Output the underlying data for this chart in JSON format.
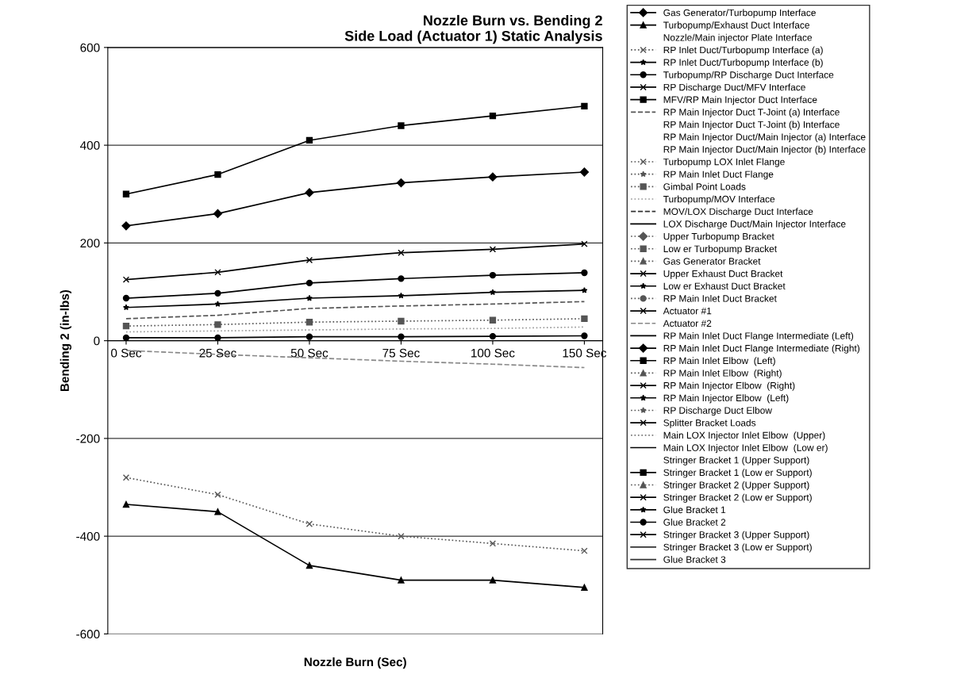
{
  "chart_data": {
    "type": "line",
    "title": "Nozzle Burn vs. Bending 2\nSide Load (Actuator 1) Static Analysis",
    "xlabel": "Nozzle Burn (Sec)",
    "ylabel": "Bending 2 (in-lbs)",
    "categories": [
      "0 Sec",
      "25 Sec",
      "50 Sec",
      "75 Sec",
      "100 Sec",
      "150 Sec"
    ],
    "ylim": [
      -600,
      600
    ],
    "yticks": [
      -600,
      -400,
      -200,
      0,
      200,
      400,
      600
    ],
    "grid": "y",
    "legend": "right",
    "series": [
      {
        "name": "Gas Generator/Turbopump Interface",
        "color": "#000000",
        "marker": "diamond",
        "line_style": "solid",
        "values": [
          235,
          260,
          303,
          323,
          335,
          345
        ]
      },
      {
        "name": "Turbopump/Exhaust Duct Interface",
        "color": "#000000",
        "marker": "triangle",
        "line_style": "solid",
        "values": [
          -335,
          -350,
          -460,
          -490,
          -490,
          -505
        ]
      },
      {
        "name": "Nozzle/Main injector Plate Interface",
        "color": "#000000",
        "marker": "none",
        "line_style": "none",
        "values": [
          null,
          null,
          null,
          null,
          null,
          null
        ]
      },
      {
        "name": "RP Inlet Duct/Turbopump Interface (a)",
        "color": "#555555",
        "marker": "cross",
        "line_style": "dotted",
        "values": [
          -280,
          -315,
          -375,
          -400,
          -415,
          -430
        ]
      },
      {
        "name": "RP Inlet Duct/Turbopump Interface (b)",
        "color": "#000000",
        "marker": "star",
        "line_style": "solid",
        "values": [
          68,
          75,
          87,
          92,
          99,
          103
        ]
      },
      {
        "name": "Turbopump/RP Discharge Duct Interface",
        "color": "#000000",
        "marker": "circle",
        "line_style": "solid",
        "values": [
          87,
          97,
          118,
          127,
          134,
          139
        ]
      },
      {
        "name": "RP Discharge Duct/MFV Interface",
        "color": "#000000",
        "marker": "cross",
        "line_style": "solid",
        "values": [
          125,
          140,
          165,
          180,
          187,
          198
        ]
      },
      {
        "name": "MFV/RP Main Injector Duct Interface",
        "color": "#000000",
        "marker": "square",
        "line_style": "solid",
        "values": [
          300,
          340,
          410,
          440,
          460,
          480
        ]
      },
      {
        "name": "RP Main Injector Duct T-Joint (a) Interface",
        "color": "#555555",
        "marker": "none",
        "line_style": "dashed",
        "values": [
          45,
          52,
          66,
          71,
          75,
          80
        ]
      },
      {
        "name": "RP Main Injector Duct T-Joint (b) Interface",
        "color": "#000000",
        "marker": "none",
        "line_style": "none",
        "values": [
          null,
          null,
          null,
          null,
          null,
          null
        ]
      },
      {
        "name": "RP Main Injector Duct/Main Injector (a) Interface",
        "color": "#000000",
        "marker": "none",
        "line_style": "none",
        "values": [
          null,
          null,
          null,
          null,
          null,
          null
        ]
      },
      {
        "name": "RP Main Injector Duct/Main Injector (b) Interface",
        "color": "#000000",
        "marker": "none",
        "line_style": "none",
        "values": [
          null,
          null,
          null,
          null,
          null,
          null
        ]
      },
      {
        "name": "Turbopump LOX Inlet Flange",
        "color": "#555555",
        "marker": "cross",
        "line_style": "dotted",
        "values": [
          null,
          null,
          null,
          null,
          null,
          null
        ]
      },
      {
        "name": "RP Main Inlet Duct Flange",
        "color": "#555555",
        "marker": "star",
        "line_style": "dotted",
        "values": [
          null,
          null,
          null,
          null,
          null,
          null
        ]
      },
      {
        "name": "Gimbal Point Loads",
        "color": "#555555",
        "marker": "square",
        "line_style": "dotted",
        "values": [
          30,
          33,
          38,
          40,
          42,
          45
        ]
      },
      {
        "name": "Turbopump/MOV Interface",
        "color": "#999999",
        "marker": "none",
        "line_style": "dotted",
        "values": [
          18,
          20,
          22,
          24,
          25,
          28
        ]
      },
      {
        "name": "MOV/LOX Discharge Duct Interface",
        "color": "#333333",
        "marker": "none",
        "line_style": "dashed",
        "values": [
          null,
          null,
          null,
          null,
          null,
          null
        ]
      },
      {
        "name": "LOX Discharge Duct/Main Injector Interface",
        "color": "#000000",
        "marker": "none",
        "line_style": "solid",
        "values": [
          null,
          null,
          null,
          null,
          null,
          null
        ]
      },
      {
        "name": "Upper Turbopump Bracket",
        "color": "#555555",
        "marker": "diamond",
        "line_style": "dotted",
        "values": [
          null,
          null,
          null,
          null,
          null,
          null
        ]
      },
      {
        "name": "Low er Turbopump Bracket",
        "color": "#555555",
        "marker": "square",
        "line_style": "dotted",
        "values": [
          null,
          null,
          null,
          null,
          null,
          null
        ]
      },
      {
        "name": "Gas Generator Bracket",
        "color": "#555555",
        "marker": "triangle",
        "line_style": "dotted",
        "values": [
          null,
          null,
          null,
          null,
          null,
          null
        ]
      },
      {
        "name": "Upper Exhaust Duct Bracket",
        "color": "#000000",
        "marker": "cross",
        "line_style": "solid",
        "values": [
          null,
          null,
          null,
          null,
          null,
          null
        ]
      },
      {
        "name": "Low er Exhaust Duct Bracket",
        "color": "#000000",
        "marker": "star",
        "line_style": "solid",
        "values": [
          null,
          null,
          null,
          null,
          null,
          null
        ]
      },
      {
        "name": "RP Main Inlet Duct Bracket",
        "color": "#555555",
        "marker": "circle",
        "line_style": "dotted",
        "values": [
          null,
          null,
          null,
          null,
          null,
          null
        ]
      },
      {
        "name": "Actuator #1",
        "color": "#000000",
        "marker": "cross",
        "line_style": "solid",
        "values": [
          null,
          null,
          null,
          null,
          null,
          null
        ]
      },
      {
        "name": "Actuator #2",
        "color": "#888888",
        "marker": "none",
        "line_style": "dashed",
        "values": [
          -20,
          -28,
          -35,
          -42,
          -48,
          -55
        ]
      },
      {
        "name": "RP Main Inlet Duct Flange Intermediate (Left)",
        "color": "#000000",
        "marker": "none",
        "line_style": "solid",
        "values": [
          null,
          null,
          null,
          null,
          null,
          null
        ]
      },
      {
        "name": "RP Main Inlet Duct Flange Intermediate (Right)",
        "color": "#000000",
        "marker": "diamond",
        "line_style": "solid",
        "values": [
          null,
          null,
          null,
          null,
          null,
          null
        ]
      },
      {
        "name": "RP Main Inlet Elbow  (Left)",
        "color": "#000000",
        "marker": "square",
        "line_style": "solid",
        "values": [
          null,
          null,
          null,
          null,
          null,
          null
        ]
      },
      {
        "name": "RP Main Inlet Elbow  (Right)",
        "color": "#555555",
        "marker": "triangle",
        "line_style": "dotted",
        "values": [
          null,
          null,
          null,
          null,
          null,
          null
        ]
      },
      {
        "name": "RP Main Injector Elbow  (Right)",
        "color": "#000000",
        "marker": "cross",
        "line_style": "solid",
        "values": [
          null,
          null,
          null,
          null,
          null,
          null
        ]
      },
      {
        "name": "RP Main Injector Elbow  (Left)",
        "color": "#000000",
        "marker": "star",
        "line_style": "solid",
        "values": [
          null,
          null,
          null,
          null,
          null,
          null
        ]
      },
      {
        "name": "RP Discharge Duct Elbow",
        "color": "#555555",
        "marker": "star",
        "line_style": "dotted",
        "values": [
          null,
          null,
          null,
          null,
          null,
          null
        ]
      },
      {
        "name": "Splitter Bracket Loads",
        "color": "#000000",
        "marker": "cross",
        "line_style": "solid",
        "values": [
          null,
          null,
          null,
          null,
          null,
          null
        ]
      },
      {
        "name": "Main LOX Injector Inlet Elbow  (Upper)",
        "color": "#777777",
        "marker": "none",
        "line_style": "dotted",
        "values": [
          null,
          null,
          null,
          null,
          null,
          null
        ]
      },
      {
        "name": "Main LOX Injector Inlet Elbow  (Low er)",
        "color": "#000000",
        "marker": "none",
        "line_style": "solid",
        "values": [
          null,
          null,
          null,
          null,
          null,
          null
        ]
      },
      {
        "name": "Stringer Bracket 1 (Upper Support)",
        "color": "#000000",
        "marker": "none",
        "line_style": "none",
        "values": [
          null,
          null,
          null,
          null,
          null,
          null
        ]
      },
      {
        "name": "Stringer Bracket 1 (Low er Support)",
        "color": "#000000",
        "marker": "square",
        "line_style": "solid",
        "values": [
          null,
          null,
          null,
          null,
          null,
          null
        ]
      },
      {
        "name": "Stringer Bracket 2 (Upper Support)",
        "color": "#555555",
        "marker": "triangle",
        "line_style": "dotted",
        "values": [
          null,
          null,
          null,
          null,
          null,
          null
        ]
      },
      {
        "name": "Stringer Bracket 2 (Low er Support)",
        "color": "#000000",
        "marker": "cross",
        "line_style": "solid",
        "values": [
          null,
          null,
          null,
          null,
          null,
          null
        ]
      },
      {
        "name": "Glue Bracket 1",
        "color": "#000000",
        "marker": "star",
        "line_style": "solid",
        "values": [
          null,
          null,
          null,
          null,
          null,
          null
        ]
      },
      {
        "name": "Glue Bracket 2",
        "color": "#000000",
        "marker": "circle",
        "line_style": "solid",
        "values": [
          6,
          6,
          8,
          8,
          9,
          10
        ]
      },
      {
        "name": "Stringer Bracket 3 (Upper Support)",
        "color": "#000000",
        "marker": "cross",
        "line_style": "solid",
        "values": [
          null,
          null,
          null,
          null,
          null,
          null
        ]
      },
      {
        "name": "Stringer Bracket 3 (Low er Support)",
        "color": "#333333",
        "marker": "none",
        "line_style": "solid",
        "values": [
          null,
          null,
          null,
          null,
          null,
          null
        ]
      },
      {
        "name": "Glue Bracket 3",
        "color": "#333333",
        "marker": "none",
        "line_style": "solid",
        "values": [
          null,
          null,
          null,
          null,
          null,
          null
        ]
      }
    ]
  }
}
